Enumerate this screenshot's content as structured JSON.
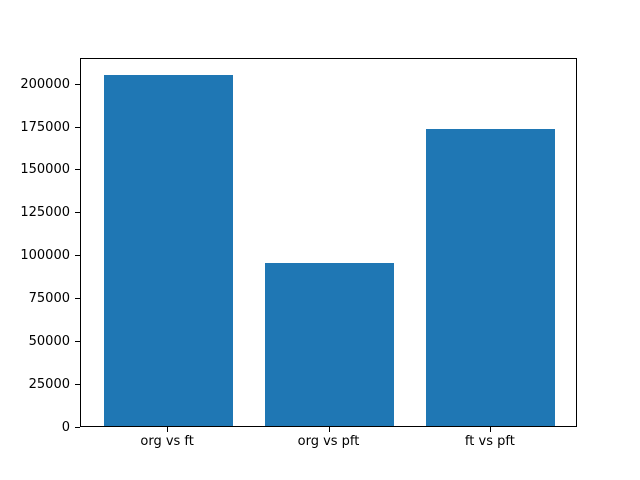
{
  "figure": {
    "background": "#ffffff",
    "spine_color": "#000000",
    "tick_color": "#000000",
    "text_color": "#000000"
  },
  "chart_data": {
    "type": "bar",
    "categories": [
      "org vs ft",
      "org vs pft",
      "ft vs pft"
    ],
    "values": [
      205000,
      95000,
      173000
    ],
    "title": "",
    "xlabel": "",
    "ylabel": "",
    "ylim": [
      0,
      215250
    ],
    "yticks": [
      0,
      25000,
      50000,
      75000,
      100000,
      125000,
      150000,
      175000,
      200000
    ],
    "bar_color": "#1f77b4",
    "bar_width_fraction": 0.8,
    "grid": false,
    "legend": "none"
  }
}
